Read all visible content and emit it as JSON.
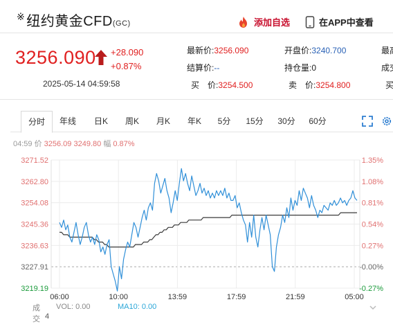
{
  "header": {
    "star": "※",
    "title": "纽约黄金CFD",
    "title_sub": "(GC)",
    "add_watch": "添加自选",
    "app_view": "在APP中查看"
  },
  "quote": {
    "price": "3256.090",
    "change": "+28.090",
    "change_pct": "+0.87%",
    "datetime": "2025-05-14 04:59:58",
    "fields": [
      {
        "label": "最新价:",
        "value": "3256.090"
      },
      {
        "label": "开盘价:",
        "value": "3240.700"
      },
      {
        "label": "最高",
        "value": ""
      },
      {
        "label": "结算价:",
        "value": "--"
      },
      {
        "label": "持仓量:",
        "value": "0"
      },
      {
        "label": "成交",
        "value": ""
      },
      {
        "label": "买　价:",
        "value": "3254.500"
      },
      {
        "label": "卖　价:",
        "value": "3254.800"
      },
      {
        "label": "买",
        "value": ""
      }
    ]
  },
  "tabs": [
    "分时",
    "年线",
    "日K",
    "周K",
    "月K",
    "年K",
    "5分",
    "15分",
    "30分",
    "60分"
  ],
  "info": {
    "time": "04:59",
    "price_label": "价",
    "price": "3256.09",
    "avg": "3249.80",
    "amp_label": "幅",
    "amp": "0.87%"
  },
  "chart_data": {
    "type": "line",
    "y_ticks_left": [
      "3271.52",
      "3262.80",
      "3254.08",
      "3245.36",
      "3236.63",
      "3227.91",
      "3219.19"
    ],
    "y_ticks_right": [
      "1.35%",
      "1.08%",
      "0.81%",
      "0.54%",
      "0.27%",
      "-0.00%",
      "-0.27%"
    ],
    "x_ticks": [
      "06:00",
      "10:00",
      "13:59",
      "17:59",
      "21:59",
      "05:00"
    ],
    "ylim": [
      3219.19,
      3271.52
    ],
    "prev_close": 3227.91,
    "series": [
      {
        "values": [
          3246,
          3244,
          3247,
          3243,
          3245,
          3240,
          3238,
          3242,
          3246,
          3241,
          3237,
          3240,
          3244,
          3246,
          3241,
          3238,
          3240,
          3237,
          3241,
          3239,
          3234,
          3236,
          3233,
          3237,
          3239,
          3228,
          3225,
          3222,
          3218,
          3228,
          3223,
          3231,
          3235,
          3238,
          3236,
          3241,
          3246,
          3244,
          3240,
          3244,
          3248,
          3251,
          3247,
          3252,
          3254,
          3251,
          3262,
          3266,
          3263,
          3258,
          3261,
          3264,
          3259,
          3256,
          3250,
          3254,
          3259,
          3255,
          3262,
          3268,
          3263,
          3266,
          3262,
          3259,
          3265,
          3261,
          3257,
          3259,
          3262,
          3258,
          3260,
          3257,
          3259,
          3256,
          3258,
          3256,
          3259,
          3257,
          3259,
          3257,
          3260,
          3256,
          3258,
          3255,
          3255,
          3257,
          3252,
          3254,
          3250,
          3247,
          3245,
          3238,
          3246,
          3240,
          3249,
          3240,
          3236,
          3243,
          3248,
          3243,
          3249,
          3245,
          3241,
          3228,
          3226,
          3236,
          3241,
          3244,
          3249,
          3246,
          3252,
          3248,
          3256,
          3251,
          3255,
          3253,
          3259,
          3255,
          3260,
          3258,
          3256,
          3252,
          3257,
          3253,
          3251,
          3248,
          3251,
          3250,
          3253,
          3252,
          3251,
          3254,
          3253,
          3255,
          3253,
          3254,
          3256,
          3254,
          3255,
          3253,
          3255,
          3256,
          3259,
          3256,
          3255
        ]
      },
      {
        "values": [
          3242,
          3242,
          3241,
          3241,
          3241,
          3240,
          3240,
          3240,
          3240,
          3240,
          3240,
          3240,
          3240,
          3240,
          3240,
          3240,
          3240,
          3239,
          3239,
          3238,
          3238,
          3238,
          3237,
          3237,
          3236,
          3236,
          3236,
          3236,
          3236,
          3236,
          3236,
          3236,
          3236,
          3236,
          3236,
          3236,
          3236,
          3237,
          3237,
          3237,
          3237,
          3238,
          3238,
          3238,
          3239,
          3239,
          3240,
          3241,
          3241,
          3242,
          3242,
          3243,
          3243,
          3244,
          3244,
          3244,
          3245,
          3245,
          3245,
          3246,
          3246,
          3246,
          3246,
          3247,
          3247,
          3247,
          3247,
          3247,
          3247,
          3247,
          3248,
          3248,
          3248,
          3248,
          3248,
          3248,
          3248,
          3248,
          3248,
          3248,
          3248,
          3248,
          3248,
          3248,
          3249,
          3249,
          3249,
          3249,
          3249,
          3249,
          3249,
          3249,
          3249,
          3249,
          3249,
          3249,
          3249,
          3249,
          3249,
          3249,
          3249,
          3249,
          3249,
          3249,
          3249,
          3249,
          3249,
          3249,
          3249,
          3249,
          3249,
          3249,
          3249,
          3249,
          3249,
          3249,
          3249,
          3249,
          3249,
          3249,
          3249,
          3249,
          3249,
          3249,
          3249,
          3249,
          3249,
          3249,
          3249,
          3249,
          3249,
          3249,
          3249,
          3249,
          3249,
          3249,
          3249,
          3250,
          3250,
          3250,
          3250,
          3250,
          3250,
          3250,
          3250,
          3250
        ]
      }
    ]
  },
  "bottom": {
    "vol_label": "成交",
    "vol_sub": "4",
    "vol": "VOL: 0.00",
    "ma10": "MA10: 0.00"
  },
  "colors": {
    "up": "#e02020",
    "line": "#2f8fd8",
    "avg": "#3a3a3a",
    "grid": "#ececec"
  }
}
